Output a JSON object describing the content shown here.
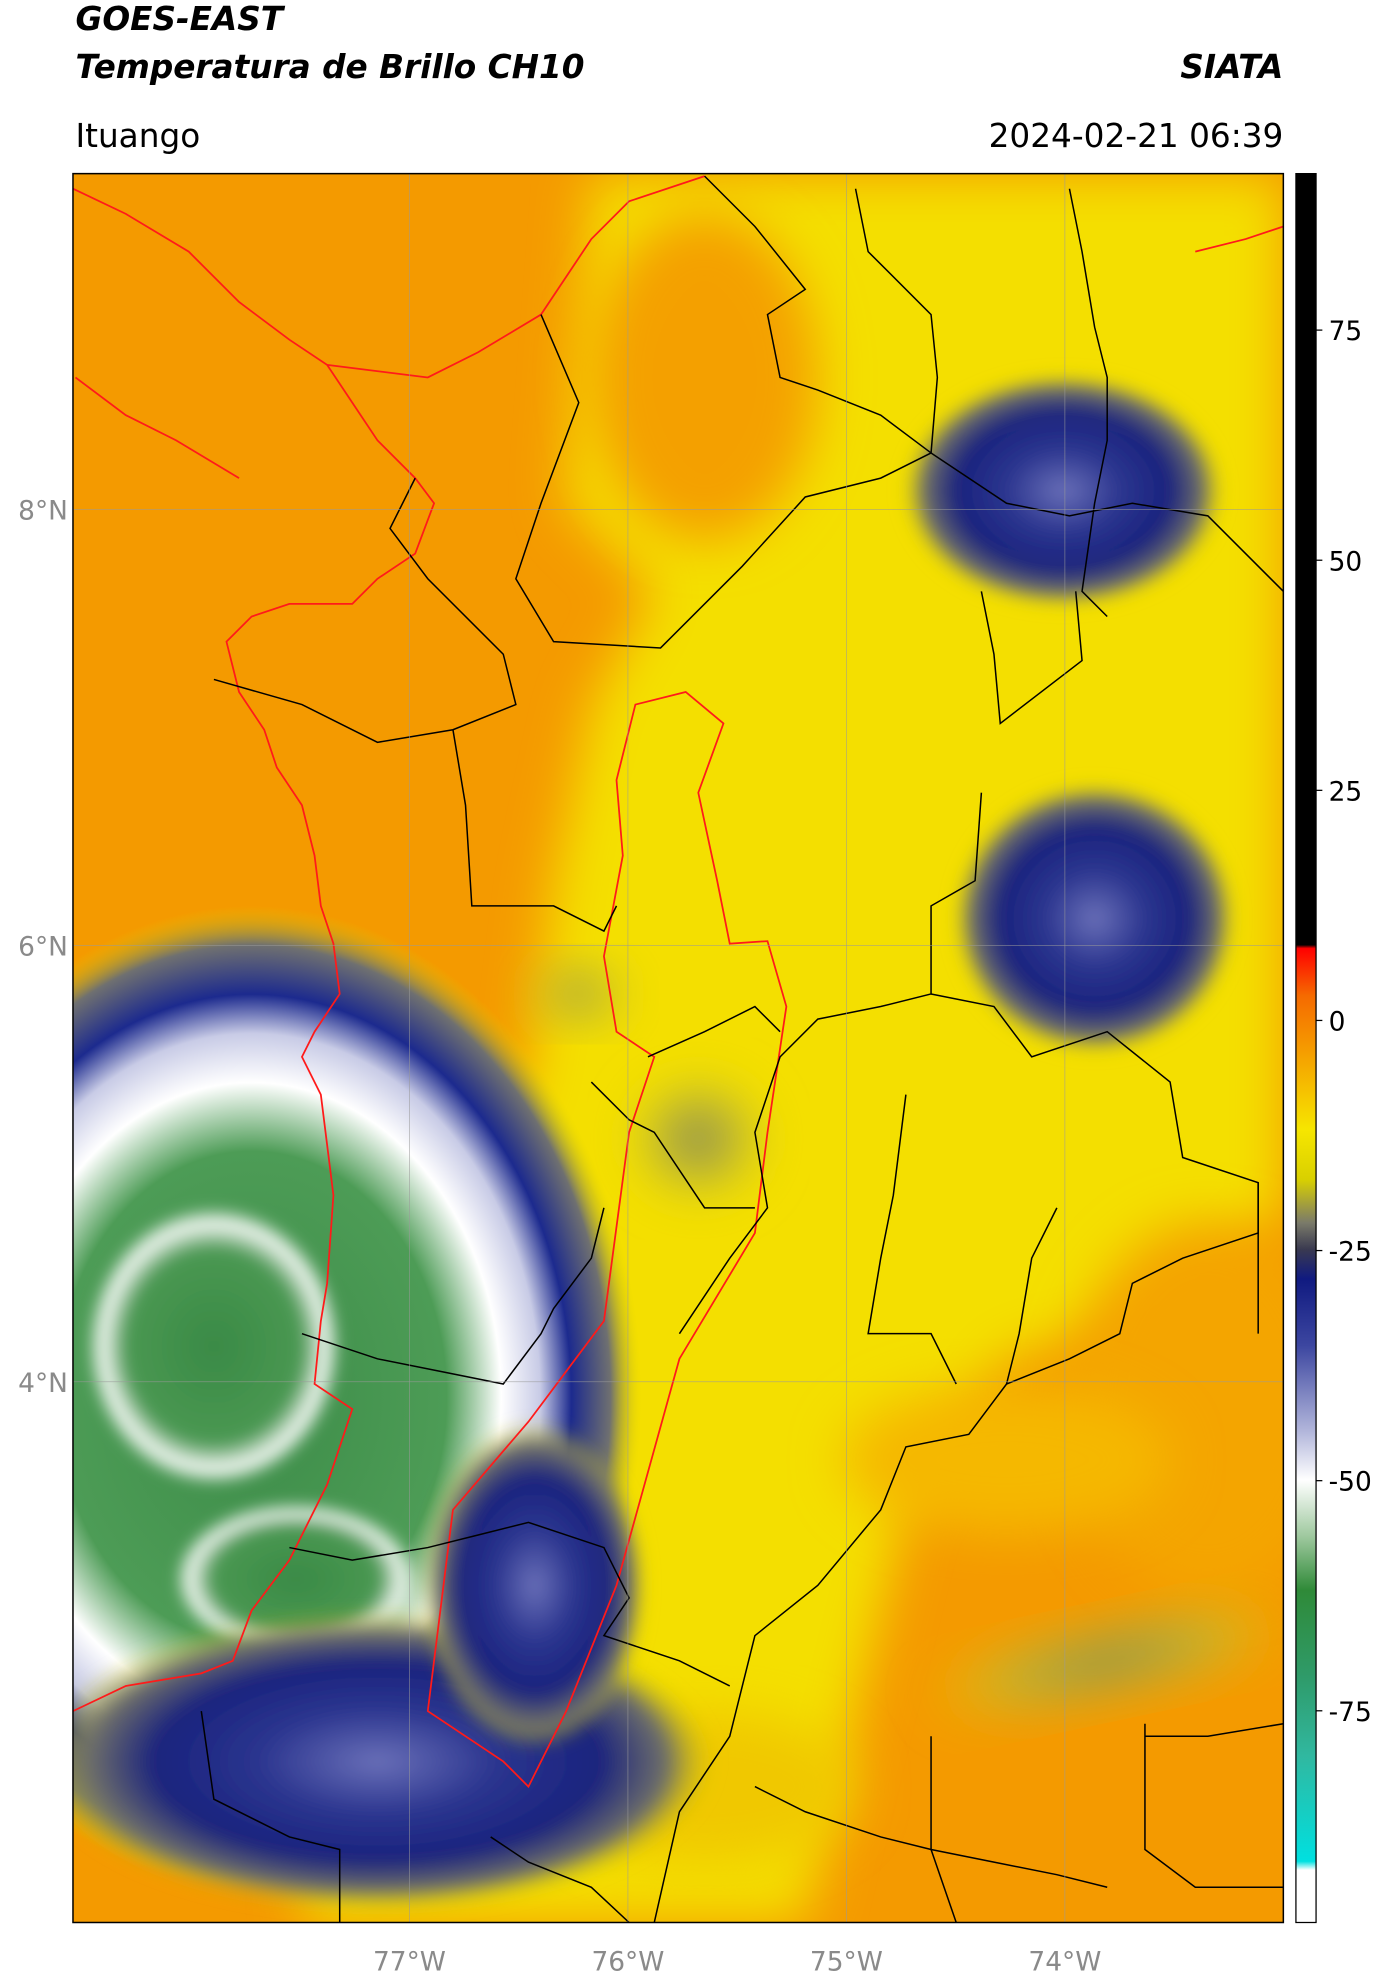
{
  "header": {
    "title": "GOES-EAST",
    "subtitle": "Temperatura de Brillo CH10",
    "source": "SIATA",
    "location": "Ituango",
    "datetime": "2024-02-21 06:39"
  },
  "map": {
    "xlim": [
      -78.54,
      -73.0
    ],
    "ylim": [
      1.52,
      9.54
    ],
    "xticks": [
      {
        "value": -77,
        "label": "77°W"
      },
      {
        "value": -76,
        "label": "76°W"
      },
      {
        "value": -75,
        "label": "75°W"
      },
      {
        "value": -74,
        "label": "74°W"
      }
    ],
    "yticks": [
      {
        "value": 8,
        "label": "8°N"
      },
      {
        "value": 6,
        "label": "6°N"
      },
      {
        "value": 4,
        "label": "4°N"
      }
    ],
    "grid": true
  },
  "colorbar": {
    "lim": [
      -98,
      92
    ],
    "ticks": [
      75,
      50,
      25,
      0,
      -25,
      -50,
      -75
    ]
  }
}
